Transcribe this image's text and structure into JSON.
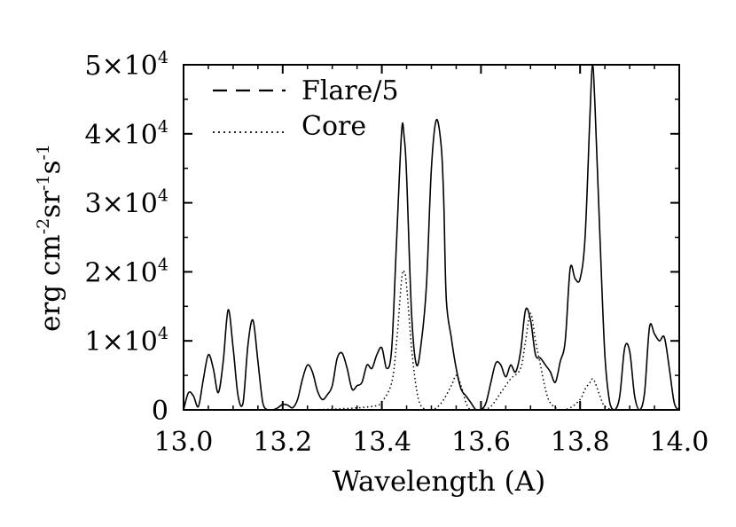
{
  "chart_data": {
    "type": "line",
    "xlabel": "Wavelength (A)",
    "ylabel": {
      "base": "erg cm",
      "exp1": "-2",
      "mid": "sr",
      "exp2": "-1",
      "end": "s",
      "exp3": "-1"
    },
    "xlim": [
      13.0,
      14.0
    ],
    "ylim": [
      0,
      50000
    ],
    "x_ticks": [
      {
        "value": 13.0,
        "label": "13.0"
      },
      {
        "value": 13.2,
        "label": "13.2"
      },
      {
        "value": 13.4,
        "label": "13.4"
      },
      {
        "value": 13.6,
        "label": "13.6"
      },
      {
        "value": 13.8,
        "label": "13.8"
      },
      {
        "value": 14.0,
        "label": "14.0"
      }
    ],
    "y_ticks": [
      {
        "value": 0,
        "mant": "0",
        "exp": ""
      },
      {
        "value": 10000,
        "mant": "1×10",
        "exp": "4"
      },
      {
        "value": 20000,
        "mant": "2×10",
        "exp": "4"
      },
      {
        "value": 30000,
        "mant": "3×10",
        "exp": "4"
      },
      {
        "value": 40000,
        "mant": "4×10",
        "exp": "4"
      },
      {
        "value": 50000,
        "mant": "5×10",
        "exp": "4"
      }
    ],
    "legend_position": "top-left",
    "series": [
      {
        "name": "Flare/5",
        "style": "solid",
        "x": [
          13.0,
          13.01,
          13.02,
          13.03,
          13.04,
          13.05,
          13.06,
          13.07,
          13.08,
          13.09,
          13.1,
          13.11,
          13.12,
          13.13,
          13.14,
          13.15,
          13.16,
          13.17,
          13.18,
          13.19,
          13.2,
          13.21,
          13.22,
          13.23,
          13.24,
          13.25,
          13.26,
          13.27,
          13.28,
          13.29,
          13.3,
          13.31,
          13.32,
          13.33,
          13.34,
          13.35,
          13.36,
          13.37,
          13.38,
          13.39,
          13.4,
          13.41,
          13.42,
          13.43,
          13.44,
          13.445,
          13.45,
          13.46,
          13.47,
          13.48,
          13.49,
          13.5,
          13.51,
          13.52,
          13.525,
          13.53,
          13.54,
          13.55,
          13.56,
          13.57,
          13.58,
          13.59,
          13.6,
          13.61,
          13.62,
          13.63,
          13.64,
          13.65,
          13.66,
          13.67,
          13.68,
          13.69,
          13.7,
          13.71,
          13.72,
          13.73,
          13.74,
          13.75,
          13.76,
          13.77,
          13.78,
          13.79,
          13.8,
          13.81,
          13.82,
          13.825,
          13.83,
          13.84,
          13.85,
          13.86,
          13.87,
          13.88,
          13.89,
          13.9,
          13.91,
          13.92,
          13.93,
          13.94,
          13.95,
          13.96,
          13.97,
          13.98,
          13.99,
          14.0
        ],
        "y": [
          0,
          2500,
          2000,
          500,
          4500,
          8000,
          6000,
          2500,
          7000,
          14500,
          9000,
          2000,
          1000,
          9500,
          13000,
          7000,
          1000,
          0,
          0,
          300,
          800,
          700,
          300,
          1500,
          4500,
          6500,
          5500,
          2800,
          1500,
          2200,
          3500,
          7500,
          8200,
          6000,
          3000,
          3500,
          4000,
          6500,
          6000,
          8000,
          9000,
          6000,
          9000,
          25000,
          40500,
          39500,
          34000,
          14000,
          6500,
          10000,
          18000,
          35000,
          42000,
          38000,
          30000,
          16000,
          10500,
          6000,
          3000,
          2000,
          1000,
          0,
          0,
          1000,
          4000,
          6800,
          6500,
          4800,
          6500,
          5500,
          8500,
          14500,
          13000,
          8000,
          7500,
          6500,
          5500,
          4000,
          7000,
          10000,
          20500,
          19000,
          19000,
          25000,
          43000,
          50000,
          44000,
          25000,
          8000,
          1000,
          0,
          2000,
          9000,
          8500,
          2000,
          0,
          2500,
          12000,
          11000,
          10000,
          10500,
          6000,
          1000,
          0
        ]
      },
      {
        "name": "Core",
        "style": "dotted",
        "x": [
          13.0,
          13.2,
          13.3,
          13.38,
          13.4,
          13.42,
          13.43,
          13.44,
          13.445,
          13.45,
          13.46,
          13.47,
          13.48,
          13.5,
          13.52,
          13.54,
          13.55,
          13.56,
          13.57,
          13.58,
          13.6,
          13.62,
          13.64,
          13.66,
          13.68,
          13.69,
          13.7,
          13.71,
          13.72,
          13.73,
          13.74,
          13.76,
          13.78,
          13.8,
          13.81,
          13.82,
          13.825,
          13.83,
          13.84,
          13.85,
          13.87,
          13.9,
          14.0
        ],
        "y": [
          0,
          0,
          100,
          500,
          1200,
          4000,
          10000,
          19000,
          20000,
          18000,
          9000,
          3000,
          500,
          0,
          1000,
          3500,
          5000,
          3500,
          1000,
          0,
          0,
          500,
          2500,
          4500,
          6000,
          10000,
          14000,
          10000,
          6500,
          3000,
          1000,
          0,
          300,
          1500,
          3000,
          4000,
          4500,
          4000,
          2000,
          500,
          0,
          0,
          0
        ]
      }
    ]
  }
}
